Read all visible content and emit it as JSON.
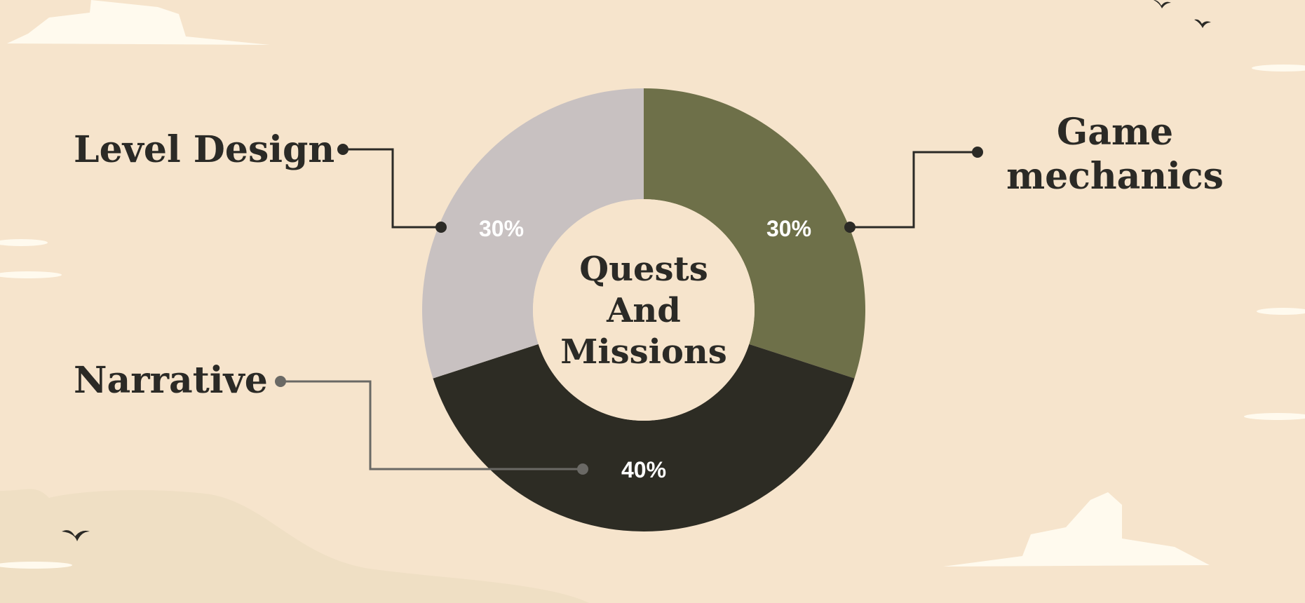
{
  "colors": {
    "background": "#f6e4cc",
    "hill": "#efdfc4",
    "cloud": "#fffaee",
    "text": "#2b2a26",
    "connector_dark": "#2b2a26",
    "connector_gray": "#6a6965"
  },
  "chart_data": {
    "type": "pie",
    "style": "donut",
    "title": "Quests And Missions",
    "title_lines": [
      "Quests",
      "And",
      "Missions"
    ],
    "slices": [
      {
        "label": "Game mechanics",
        "label_lines": [
          "Game",
          "mechanics"
        ],
        "value": 30,
        "value_label": "30%",
        "color": "#6e7049"
      },
      {
        "label": "Narrative",
        "label_lines": [
          "Narrative"
        ],
        "value": 40,
        "value_label": "40%",
        "color": "#2d2c24"
      },
      {
        "label": "Level Design",
        "label_lines": [
          "Level Design"
        ],
        "value": 30,
        "value_label": "30%",
        "color": "#c8c1c1"
      }
    ]
  }
}
